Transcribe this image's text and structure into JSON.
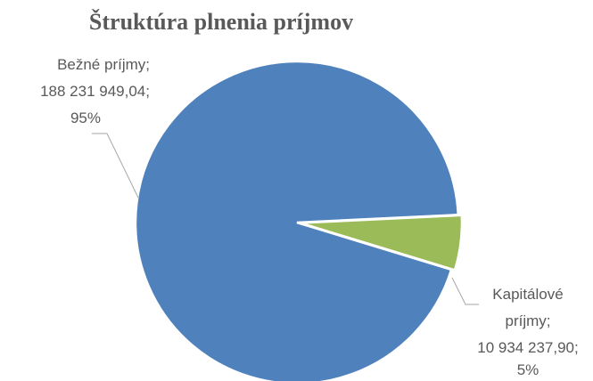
{
  "chart_data": {
    "type": "pie",
    "title": "Štruktúra plnenia príjmov",
    "categories": [
      "Bežné príjmy",
      "Kapitálové príjmy"
    ],
    "values": [
      188231949.04,
      10934237.9
    ],
    "value_labels": [
      "188 231 949,04",
      "10 934 237,90"
    ],
    "percents": [
      95,
      5
    ],
    "percent_labels": [
      "95%",
      "5%"
    ],
    "label_separator": ";",
    "colors": [
      "#4f81bd",
      "#9bbb59"
    ]
  }
}
